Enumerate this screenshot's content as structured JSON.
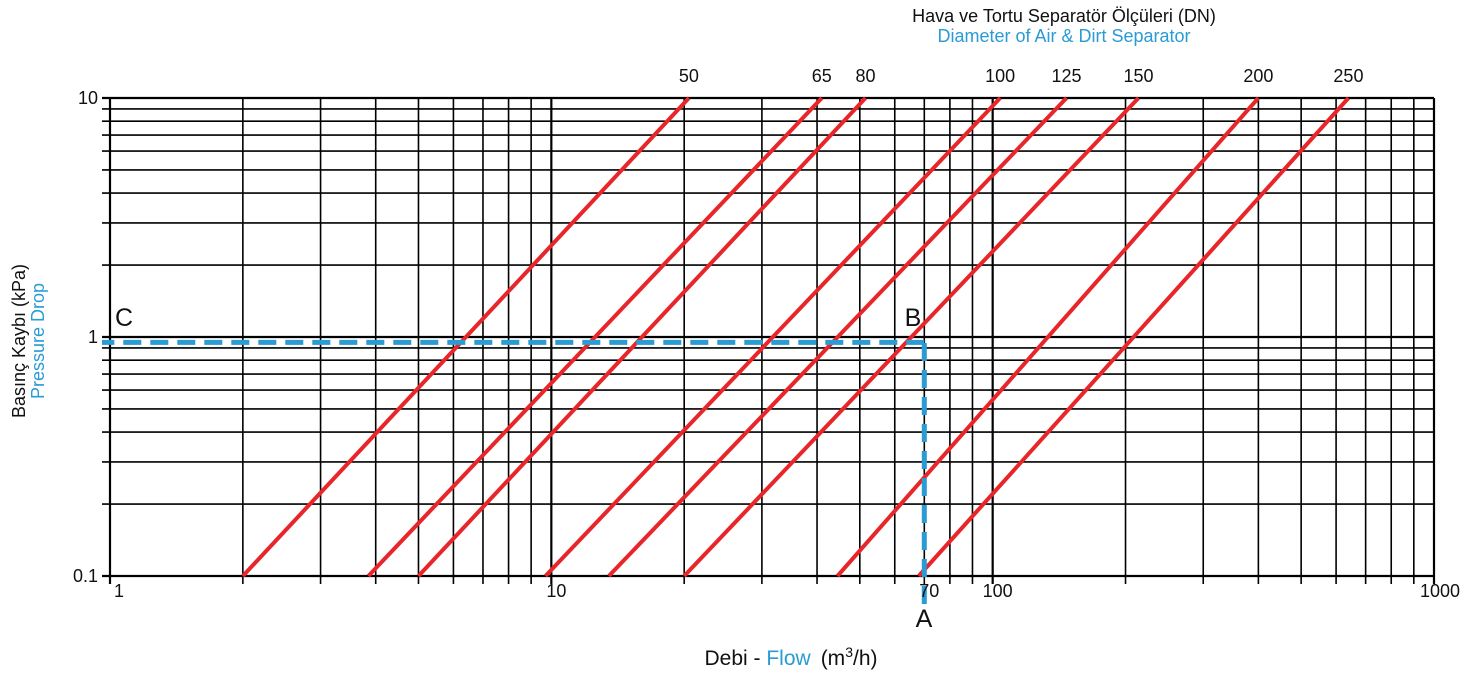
{
  "colors": {
    "grid": "#000000",
    "curve": "#e8262a",
    "accent": "#2a9bd3",
    "text": "#111111"
  },
  "labels": {
    "title_tr": "Hava ve Tortu Separatör Ölçüleri (DN)",
    "title_en": "Diameter of Air & Dirt Separator",
    "ylabel_tr": "Basınç Kaybı (kPa)",
    "ylabel_en": "Pressure Drop",
    "xlabel_tr": "Debi - ",
    "xlabel_en": "Flow",
    "xlabel_unit_pre": "(m",
    "xlabel_unit_sup": "3",
    "xlabel_unit_post": "/h)",
    "point_a": "A",
    "point_b": "B",
    "point_c": "C"
  },
  "chart_data": {
    "type": "line",
    "x_scale": "log",
    "y_scale": "log",
    "xlim": [
      1,
      1000
    ],
    "ylim": [
      0.1,
      10
    ],
    "x_ticks": [
      {
        "value": 1,
        "label": "1"
      },
      {
        "value": 10,
        "label": "10"
      },
      {
        "value": 70,
        "label": "70"
      },
      {
        "value": 100,
        "label": "100"
      },
      {
        "value": 1000,
        "label": "1000"
      }
    ],
    "y_ticks": [
      {
        "value": 0.1,
        "label": "0.1"
      },
      {
        "value": 1,
        "label": "1"
      },
      {
        "value": 10,
        "label": "10"
      }
    ],
    "grid": true,
    "series": [
      {
        "name": "50",
        "x": [
          2.0,
          20.5
        ],
        "y": [
          0.1,
          10
        ]
      },
      {
        "name": "65",
        "x": [
          3.85,
          41
        ],
        "y": [
          0.1,
          10
        ]
      },
      {
        "name": "80",
        "x": [
          5.0,
          51.5
        ],
        "y": [
          0.1,
          10
        ]
      },
      {
        "name": "100",
        "x": [
          9.7,
          104
        ],
        "y": [
          0.1,
          10
        ]
      },
      {
        "name": "125",
        "x": [
          13.5,
          147
        ],
        "y": [
          0.1,
          10
        ]
      },
      {
        "name": "150",
        "x": [
          20,
          214
        ],
        "y": [
          0.1,
          10
        ]
      },
      {
        "name": "200",
        "x": [
          44.5,
          400
        ],
        "y": [
          0.1,
          10
        ]
      },
      {
        "name": "250",
        "x": [
          68,
          640
        ],
        "y": [
          0.1,
          10
        ]
      }
    ],
    "example": {
      "flow": 70,
      "pressure_drop": 0.95,
      "path": [
        "A",
        "B",
        "C"
      ]
    }
  }
}
